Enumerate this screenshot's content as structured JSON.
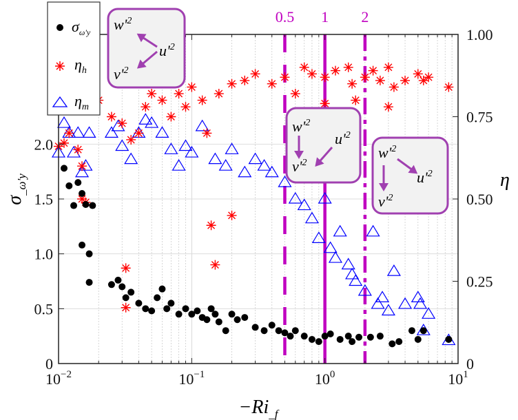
{
  "chart_data": {
    "type": "scatter",
    "xlabel": "−Ri_f",
    "ylabel_left": "σ_ω'y",
    "ylabel_right": "η",
    "x_scale": "log",
    "xlim": [
      0.01,
      10
    ],
    "ylim_left": [
      0,
      3
    ],
    "ylim_right": [
      0,
      1
    ],
    "x_ticks": [
      {
        "value": 0.01,
        "base": "10",
        "exp": "−2"
      },
      {
        "value": 0.1,
        "base": "10",
        "exp": "−1"
      },
      {
        "value": 1,
        "base": "10",
        "exp": "0"
      },
      {
        "value": 10,
        "base": "10",
        "exp": "1"
      }
    ],
    "y_ticks_left": [
      {
        "value": 0,
        "label": "0"
      },
      {
        "value": 0.5,
        "label": "0.5"
      },
      {
        "value": 1.0,
        "label": "1.0"
      },
      {
        "value": 1.5,
        "label": "1.5"
      },
      {
        "value": 2.0,
        "label": "2.0"
      }
    ],
    "y_ticks_right": [
      {
        "value": 0,
        "label": "0"
      },
      {
        "value": 0.25,
        "label": "0.25"
      },
      {
        "value": 0.5,
        "label": "0.50"
      },
      {
        "value": 0.75,
        "label": "0.75"
      },
      {
        "value": 1.0,
        "label": "1.00"
      }
    ],
    "grid": true,
    "legend_placement": "top-left",
    "colors": {
      "sigma": "#000000",
      "eta_h": "#ff0000",
      "eta_m": "#0000ff",
      "reference": "#c000c0",
      "inset_border": "#a040b0",
      "inset_fill": "#f2f2f2"
    },
    "series": [
      {
        "name": "σ_ω'y",
        "axis": "left",
        "marker": "filled-circle",
        "points": [
          [
            0.011,
            1.78
          ],
          [
            0.012,
            1.62
          ],
          [
            0.013,
            1.44
          ],
          [
            0.014,
            1.65
          ],
          [
            0.015,
            1.55
          ],
          [
            0.015,
            1.08
          ],
          [
            0.016,
            1.45
          ],
          [
            0.017,
            1.0
          ],
          [
            0.017,
            0.74
          ],
          [
            0.018,
            1.44
          ],
          [
            0.025,
            0.72
          ],
          [
            0.028,
            0.76
          ],
          [
            0.03,
            0.7
          ],
          [
            0.032,
            0.6
          ],
          [
            0.035,
            0.65
          ],
          [
            0.04,
            0.55
          ],
          [
            0.045,
            0.5
          ],
          [
            0.05,
            0.48
          ],
          [
            0.055,
            0.6
          ],
          [
            0.06,
            0.68
          ],
          [
            0.065,
            0.5
          ],
          [
            0.07,
            0.55
          ],
          [
            0.08,
            0.45
          ],
          [
            0.09,
            0.5
          ],
          [
            0.1,
            0.45
          ],
          [
            0.11,
            0.48
          ],
          [
            0.12,
            0.42
          ],
          [
            0.13,
            0.4
          ],
          [
            0.14,
            0.5
          ],
          [
            0.15,
            0.45
          ],
          [
            0.16,
            0.38
          ],
          [
            0.18,
            0.3
          ],
          [
            0.2,
            0.45
          ],
          [
            0.22,
            0.4
          ],
          [
            0.25,
            0.42
          ],
          [
            0.3,
            0.33
          ],
          [
            0.35,
            0.3
          ],
          [
            0.4,
            0.35
          ],
          [
            0.45,
            0.3
          ],
          [
            0.5,
            0.28
          ],
          [
            0.55,
            0.25
          ],
          [
            0.6,
            0.3
          ],
          [
            0.7,
            0.25
          ],
          [
            0.8,
            0.22
          ],
          [
            0.9,
            0.2
          ],
          [
            1.0,
            0.25
          ],
          [
            1.1,
            0.27
          ],
          [
            1.3,
            0.22
          ],
          [
            1.5,
            0.25
          ],
          [
            1.6,
            0.2
          ],
          [
            1.8,
            0.24
          ],
          [
            2.2,
            0.24
          ],
          [
            2.6,
            0.25
          ],
          [
            3.2,
            0.18
          ],
          [
            3.6,
            0.2
          ],
          [
            4.5,
            0.3
          ],
          [
            5,
            0.22
          ],
          [
            5.5,
            0.3
          ],
          [
            8.5,
            0.22
          ]
        ]
      },
      {
        "name": "η_h",
        "axis": "right",
        "marker": "asterisk",
        "points": [
          [
            0.01,
            0.66
          ],
          [
            0.011,
            0.67
          ],
          [
            0.012,
            0.7
          ],
          [
            0.013,
            0.78
          ],
          [
            0.014,
            0.65
          ],
          [
            0.015,
            0.5
          ],
          [
            0.016,
            0.49
          ],
          [
            0.015,
            0.6
          ],
          [
            0.02,
            0.8
          ],
          [
            0.025,
            0.75
          ],
          [
            0.03,
            0.73
          ],
          [
            0.032,
            0.29
          ],
          [
            0.032,
            0.17
          ],
          [
            0.035,
            0.68
          ],
          [
            0.04,
            0.7
          ],
          [
            0.045,
            0.78
          ],
          [
            0.05,
            0.82
          ],
          [
            0.06,
            0.8
          ],
          [
            0.07,
            0.75
          ],
          [
            0.08,
            0.82
          ],
          [
            0.09,
            0.78
          ],
          [
            0.1,
            0.84
          ],
          [
            0.12,
            0.8
          ],
          [
            0.13,
            0.7
          ],
          [
            0.14,
            0.42
          ],
          [
            0.15,
            0.3
          ],
          [
            0.16,
            0.82
          ],
          [
            0.2,
            0.85
          ],
          [
            0.2,
            0.45
          ],
          [
            0.25,
            0.86
          ],
          [
            0.3,
            0.88
          ],
          [
            0.4,
            0.85
          ],
          [
            0.5,
            0.87
          ],
          [
            0.6,
            0.82
          ],
          [
            0.7,
            0.9
          ],
          [
            0.8,
            0.88
          ],
          [
            1.0,
            0.87
          ],
          [
            1.0,
            0.79
          ],
          [
            1.2,
            0.89
          ],
          [
            1.5,
            0.9
          ],
          [
            1.6,
            0.85
          ],
          [
            1.7,
            0.8
          ],
          [
            2,
            0.87
          ],
          [
            2.3,
            0.89
          ],
          [
            2.6,
            0.86
          ],
          [
            3,
            0.9
          ],
          [
            3,
            0.78
          ],
          [
            3.3,
            0.84
          ],
          [
            4,
            0.86
          ],
          [
            5,
            0.88
          ],
          [
            5.5,
            0.86
          ],
          [
            6,
            0.87
          ],
          [
            8.5,
            0.84
          ]
        ]
      },
      {
        "name": "η_m",
        "axis": "right",
        "marker": "open-triangle",
        "points": [
          [
            0.01,
            0.64
          ],
          [
            0.011,
            0.73
          ],
          [
            0.012,
            0.7
          ],
          [
            0.013,
            0.64
          ],
          [
            0.014,
            0.7
          ],
          [
            0.015,
            0.58
          ],
          [
            0.016,
            0.6
          ],
          [
            0.017,
            0.7
          ],
          [
            0.025,
            0.7
          ],
          [
            0.028,
            0.72
          ],
          [
            0.03,
            0.66
          ],
          [
            0.035,
            0.62
          ],
          [
            0.04,
            0.7
          ],
          [
            0.045,
            0.74
          ],
          [
            0.05,
            0.73
          ],
          [
            0.06,
            0.7
          ],
          [
            0.07,
            0.65
          ],
          [
            0.08,
            0.6
          ],
          [
            0.09,
            0.66
          ],
          [
            0.1,
            0.64
          ],
          [
            0.12,
            0.72
          ],
          [
            0.15,
            0.62
          ],
          [
            0.18,
            0.6
          ],
          [
            0.2,
            0.65
          ],
          [
            0.25,
            0.58
          ],
          [
            0.3,
            0.62
          ],
          [
            0.35,
            0.6
          ],
          [
            0.4,
            0.58
          ],
          [
            0.5,
            0.55
          ],
          [
            0.6,
            0.5
          ],
          [
            0.7,
            0.48
          ],
          [
            0.8,
            0.44
          ],
          [
            0.9,
            0.38
          ],
          [
            1.0,
            0.5
          ],
          [
            1.1,
            0.35
          ],
          [
            1.2,
            0.32
          ],
          [
            1.3,
            0.4
          ],
          [
            1.5,
            0.3
          ],
          [
            1.6,
            0.27
          ],
          [
            1.7,
            0.25
          ],
          [
            2,
            0.22
          ],
          [
            2.3,
            0.4
          ],
          [
            2.5,
            0.18
          ],
          [
            2.7,
            0.2
          ],
          [
            3,
            0.16
          ],
          [
            3.3,
            0.28
          ],
          [
            4,
            0.18
          ],
          [
            5,
            0.2
          ],
          [
            5.2,
            0.18
          ],
          [
            5.5,
            0.1
          ],
          [
            6,
            0.15
          ],
          [
            8.5,
            0.07
          ]
        ]
      }
    ],
    "reference_lines": [
      {
        "x": 0.5,
        "label": "0.5",
        "style": "dashed"
      },
      {
        "x": 1,
        "label": "1",
        "style": "solid"
      },
      {
        "x": 2,
        "label": "2",
        "style": "dash-dot"
      }
    ],
    "legend": [
      {
        "symbol": "σ",
        "sub": "ω'y"
      },
      {
        "symbol": "η",
        "sub": "h"
      },
      {
        "symbol": "η",
        "sub": "m"
      }
    ],
    "insets": [
      {
        "w": "w'2",
        "u": "u'2",
        "v": "v'2"
      },
      {
        "w": "w'2",
        "u": "u'2",
        "v": "v'2"
      },
      {
        "w": "w'2",
        "u": "u'2",
        "v": "v'2"
      }
    ]
  }
}
